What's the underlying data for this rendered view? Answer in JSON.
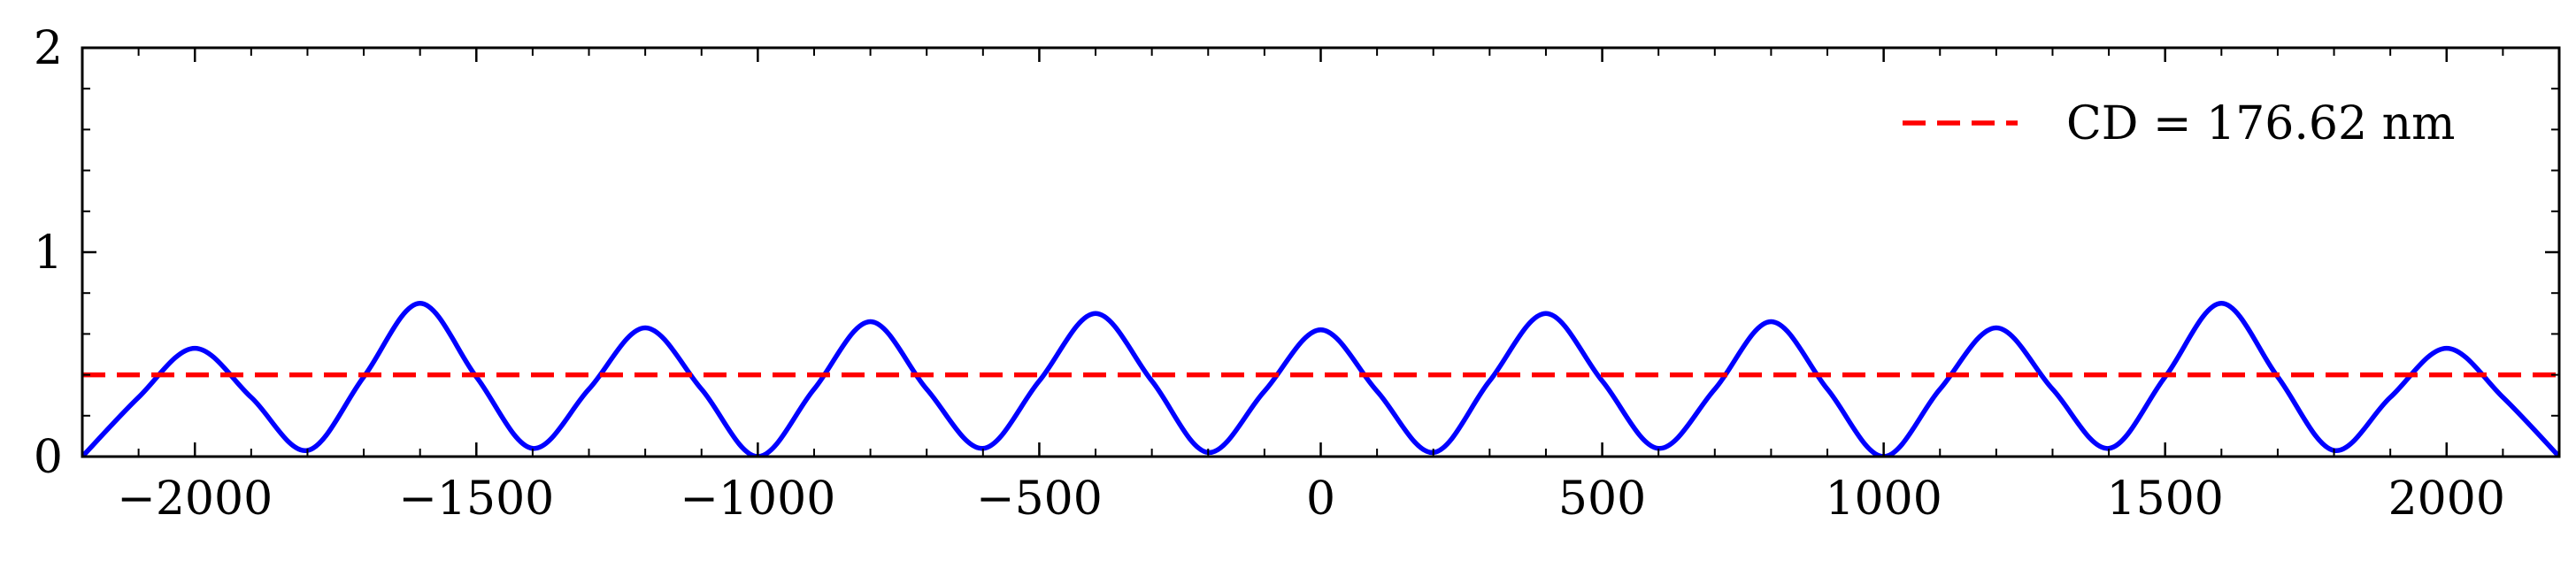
{
  "chart_data": {
    "type": "line",
    "title": "",
    "xlabel": "",
    "ylabel": "",
    "xlim": [
      -2200,
      2200
    ],
    "ylim": [
      0,
      2
    ],
    "x_ticks": [
      -2000,
      -1500,
      -1000,
      -500,
      0,
      500,
      1000,
      1500,
      2000
    ],
    "x_tick_labels": [
      "−2000",
      "−1500",
      "−1000",
      "−500",
      "0",
      "500",
      "1000",
      "1500",
      "2000"
    ],
    "y_ticks": [
      0,
      1,
      2
    ],
    "y_tick_labels": [
      "0",
      "1",
      "2"
    ],
    "grid": false,
    "legend_position": "top-right",
    "series": [
      {
        "color": "#0000ff",
        "style": "solid",
        "x": [
          -2200,
          -2100,
          -2000,
          -1900,
          -1800,
          -1700,
          -1600,
          -1500,
          -1400,
          -1300,
          -1200,
          -1100,
          -1000,
          -900,
          -800,
          -700,
          -600,
          -500,
          -400,
          -300,
          -200,
          -100,
          0,
          100,
          200,
          300,
          400,
          500,
          600,
          700,
          800,
          900,
          1000,
          1100,
          1200,
          1300,
          1400,
          1500,
          1600,
          1700,
          1800,
          1900,
          2000,
          2100,
          2200
        ],
        "y": [
          0.0,
          0.29,
          0.53,
          0.29,
          0.03,
          0.39,
          0.75,
          0.39,
          0.04,
          0.33,
          0.63,
          0.33,
          0.0,
          0.33,
          0.66,
          0.33,
          0.04,
          0.37,
          0.7,
          0.37,
          0.02,
          0.32,
          0.62,
          0.32,
          0.02,
          0.37,
          0.7,
          0.37,
          0.04,
          0.33,
          0.66,
          0.33,
          0.0,
          0.33,
          0.63,
          0.33,
          0.04,
          0.39,
          0.75,
          0.39,
          0.03,
          0.29,
          0.53,
          0.29,
          0.0
        ]
      },
      {
        "name": "CD = 176.62 nm",
        "color": "#ff0000",
        "style": "dashed",
        "x": [
          -2200,
          2200
        ],
        "y": [
          0.4,
          0.4
        ]
      }
    ]
  }
}
